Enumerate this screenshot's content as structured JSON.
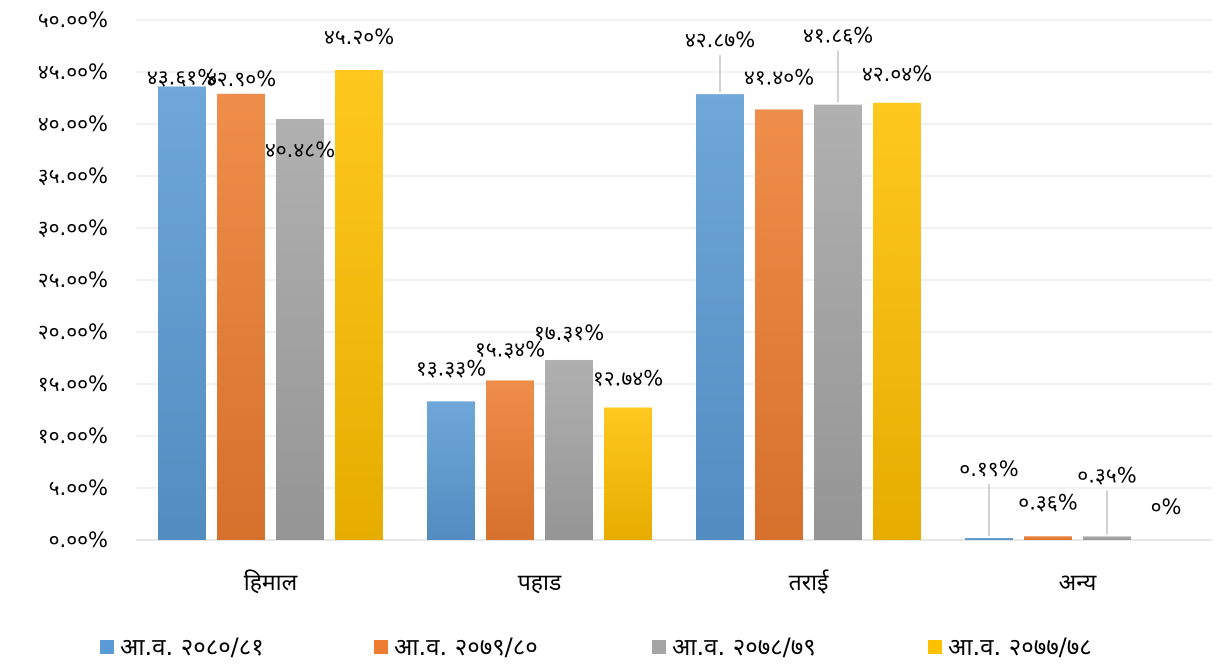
{
  "chart_data": {
    "type": "bar",
    "title": "",
    "xlabel": "",
    "ylabel": "",
    "ylim": [
      0,
      50
    ],
    "y_ticks": [
      "०.००%",
      "५.००%",
      "१०.००%",
      "१५.००%",
      "२०.००%",
      "२५.००%",
      "३०.००%",
      "३५.००%",
      "४०.००%",
      "४५.००%",
      "५०.००%"
    ],
    "categories": [
      "हिमाल",
      "पहाड",
      "तराई",
      "अन्य"
    ],
    "legend_position": "bottom",
    "grid": true,
    "series": [
      {
        "name": "आ.व. २०८०/८१",
        "color": "#5B9BD5",
        "values": [
          43.61,
          13.33,
          42.87,
          0.19
        ],
        "labels": [
          "४३.६१%",
          "१३.३३%",
          "४२.८७%",
          "०.१९%"
        ]
      },
      {
        "name": "आ.व. २०७९/८०",
        "color": "#ED7D31",
        "values": [
          42.9,
          15.34,
          41.4,
          0.36
        ],
        "labels": [
          "४२.९०%",
          "१५.३४%",
          "४१.४०%",
          "०.३६%"
        ]
      },
      {
        "name": "आ.व. २०७८/७९",
        "color": "#A5A5A5",
        "values": [
          40.48,
          17.31,
          41.86,
          0.35
        ],
        "labels": [
          "४०.४८%",
          "१७.३१%",
          "४१.८६%",
          "०.३५%"
        ]
      },
      {
        "name": "आ.व. २०७७/७८",
        "color": "#FFC000",
        "values": [
          45.2,
          12.74,
          42.04,
          0
        ],
        "labels": [
          "४५.२०%",
          "१२.७४%",
          "४२.०४%",
          "०%"
        ]
      }
    ]
  }
}
